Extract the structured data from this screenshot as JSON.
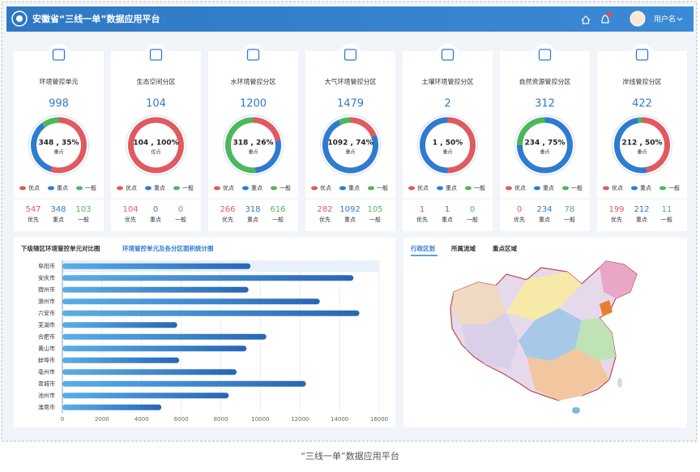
{
  "header": {
    "title": "安徽省“三线一单”数据应用平台",
    "user": "用户名"
  },
  "legend": [
    "优点",
    "重点",
    "一般"
  ],
  "stat_labels": [
    "优先",
    "重点",
    "一般"
  ],
  "cards": [
    {
      "title": "环境管控单元",
      "total": 998,
      "center": "348 , 35%",
      "center_sub": "重点",
      "counts": [
        547,
        348,
        103
      ]
    },
    {
      "title": "生态空间分区",
      "total": 104,
      "center": "104 , 100%",
      "center_sub": "优点",
      "counts": [
        104,
        0,
        0
      ]
    },
    {
      "title": "水环境管控分区",
      "total": 1200,
      "center": "318 , 26%",
      "center_sub": "重点",
      "counts": [
        266,
        318,
        616
      ]
    },
    {
      "title": "大气环境管控分区",
      "total": 1479,
      "center": "1092 , 74%",
      "center_sub": "重点",
      "counts": [
        282,
        1092,
        105
      ]
    },
    {
      "title": "土壤环境管控分区",
      "total": 2,
      "center": "1 , 50%",
      "center_sub": "重点",
      "counts": [
        1,
        1,
        0
      ]
    },
    {
      "title": "自然资源管控分区",
      "total": 312,
      "center": "234 , 75%",
      "center_sub": "重点",
      "counts": [
        0,
        234,
        78
      ]
    },
    {
      "title": "岸线管控分区",
      "total": 422,
      "center": "212 , 50%",
      "center_sub": "重点",
      "counts": [
        199,
        212,
        11
      ]
    }
  ],
  "bar_panel": {
    "tabs": [
      "下级辖区环境管控单元对比图",
      "环境管控单元及各分区面积统计图"
    ],
    "categories": [
      "阜阳市",
      "安庆市",
      "宿州市",
      "滁州市",
      "六安市",
      "芜湖市",
      "合肥市",
      "黄山市",
      "蚌埠市",
      "亳州市",
      "宣城市",
      "池州市",
      "淮南市"
    ],
    "values": [
      9500,
      14700,
      9400,
      13000,
      15000,
      5800,
      10300,
      9300,
      5900,
      8800,
      12300,
      8400,
      5000
    ],
    "xlim": [
      0,
      16000
    ],
    "xticks": [
      0,
      2000,
      4000,
      6000,
      8000,
      10000,
      12000,
      14000,
      16000
    ],
    "grid": true
  },
  "map_panel": {
    "tabs": [
      "行政区划",
      "所属流域",
      "重点区域"
    ]
  },
  "caption": "“三线一单”数据应用平台"
}
